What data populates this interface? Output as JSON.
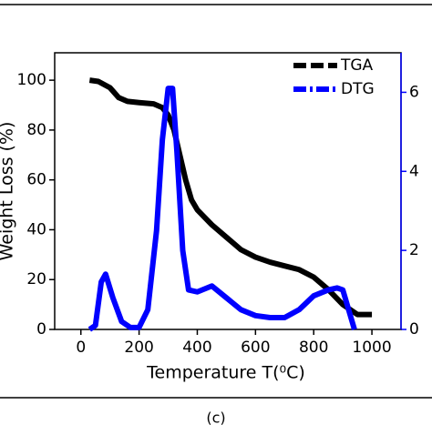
{
  "chart_data": {
    "type": "line",
    "x_label": "Temperature T(⁰C)",
    "y_label": "Weight Loss (%)",
    "xlim": [
      -90,
      1100
    ],
    "xticks": [
      0,
      200,
      400,
      600,
      800,
      1000
    ],
    "ylim": [
      0,
      111
    ],
    "yticks": [
      0,
      20,
      40,
      60,
      80,
      100
    ],
    "y2lim": [
      0,
      7
    ],
    "y2ticks": [
      0,
      2,
      4,
      6
    ],
    "legend": "upper right",
    "series": [
      {
        "name": "TGA",
        "color": "#000000",
        "dash": "dashed",
        "x": [
          30,
          60,
          100,
          130,
          160,
          200,
          250,
          280,
          300,
          320,
          340,
          360,
          380,
          400,
          450,
          500,
          550,
          600,
          650,
          700,
          750,
          800,
          850,
          900,
          950,
          1000
        ],
        "values": [
          100,
          99.5,
          97,
          93,
          91.5,
          91,
          90.5,
          89,
          86,
          80,
          70,
          60,
          52,
          48,
          42,
          37,
          32,
          29,
          27,
          25.5,
          24,
          21,
          16,
          10,
          6,
          6
        ]
      },
      {
        "name": "DTG",
        "color": "#0000ff",
        "dash": "dashdot",
        "axis": "y2",
        "x": [
          30,
          50,
          70,
          85,
          110,
          140,
          170,
          200,
          230,
          260,
          280,
          300,
          315,
          330,
          350,
          370,
          400,
          450,
          500,
          550,
          600,
          650,
          700,
          750,
          800,
          850,
          880,
          900,
          920,
          940
        ],
        "values": [
          0,
          0.1,
          1.2,
          1.4,
          0.8,
          0.2,
          0.05,
          0.05,
          0.5,
          2.5,
          4.8,
          6.1,
          6.1,
          4.5,
          2,
          1,
          0.95,
          1.1,
          0.8,
          0.5,
          0.35,
          0.3,
          0.3,
          0.5,
          0.85,
          1,
          1.05,
          1,
          0.5,
          0
        ]
      }
    ]
  },
  "caption": "(c)"
}
